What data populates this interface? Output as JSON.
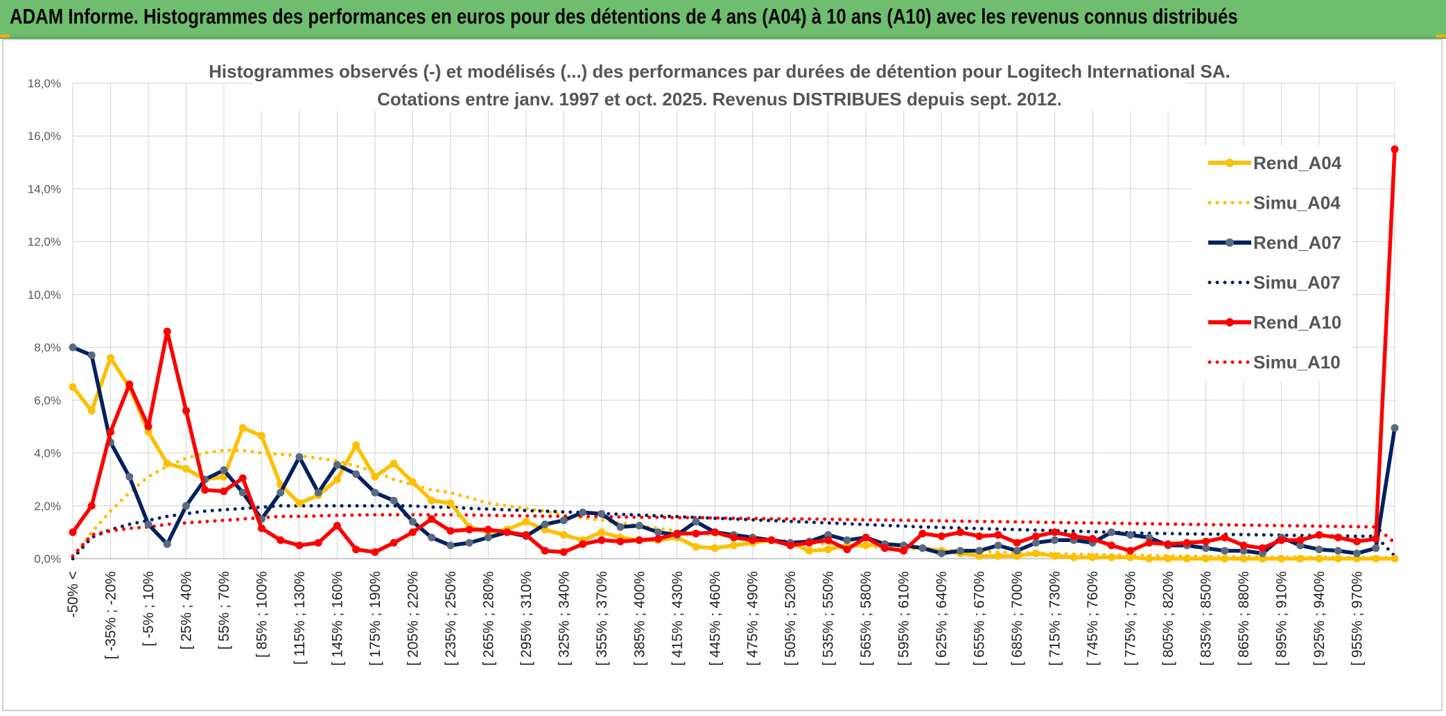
{
  "banner": {
    "title": "ADAM Informe. Histogrammes des performances en euros pour des détentions de 4 ans (A04) à 10 ans (A10) avec les revenus connus distribués"
  },
  "colors": {
    "banner_bg": "#6fbe70",
    "A04": "#ffc000",
    "A07": "#002060",
    "A07_marker": "#5a6a80",
    "A10": "#ff0000",
    "grid": "#d9d9d9"
  },
  "chart_data": {
    "type": "line",
    "title_lines": [
      "Histogrammes observés (-) et modélisés (...) des performances par durées de détention pour Logitech International SA.",
      "Cotations entre janv. 1997 et oct. 2025. Revenus DISTRIBUES depuis sept. 2012."
    ],
    "xlabel": "",
    "ylabel": "",
    "ylim": [
      0,
      18
    ],
    "y_unit": "%",
    "y_ticks": [
      "0,0%",
      "2,0%",
      "4,0%",
      "6,0%",
      "8,0%",
      "10,0%",
      "12,0%",
      "14,0%",
      "16,0%",
      "18,0%"
    ],
    "grid": true,
    "legend_position": "right",
    "x_tick_labels": [
      "-50% <",
      "[ -35% ; -20%",
      "[ -5% ; 10%",
      "[ 25% ; 40%",
      "[ 55% ; 70%",
      "[ 85% ; 100%",
      "[ 115% ; 130%",
      "[ 145% ; 160%",
      "[ 175% ; 190%",
      "[ 205% ; 220%",
      "[ 235% ; 250%",
      "[ 265% ; 280%",
      "[ 295% ; 310%",
      "[ 325% ; 340%",
      "[ 355% ; 370%",
      "[ 385% ; 400%",
      "[ 415% ; 430%",
      "[ 445% ; 460%",
      "[ 475% ; 490%",
      "[ 505% ; 520%",
      "[ 535% ; 550%",
      "[ 565% ; 580%",
      "[ 595% ; 610%",
      "[ 625% ; 640%",
      "[ 655% ; 670%",
      "[ 685% ; 700%",
      "[ 715% ; 730%",
      "[ 745% ; 760%",
      "[ 775% ; 790%",
      "[ 805% ; 820%",
      "[ 835% ; 850%",
      "[ 865% ; 880%",
      "[ 895% ; 910%",
      "[ 925% ; 940%",
      "[ 955% ; 970%"
    ],
    "series": [
      {
        "name": "Rend_A04",
        "style": "solid",
        "color": "#ffc000",
        "values": [
          6.5,
          5.6,
          7.6,
          6.5,
          4.8,
          3.6,
          3.4,
          3.0,
          3.1,
          4.95,
          4.65,
          2.8,
          2.1,
          2.4,
          3.0,
          4.3,
          3.1,
          3.6,
          2.9,
          2.2,
          2.1,
          1.2,
          1.0,
          1.1,
          1.4,
          1.1,
          0.9,
          0.7,
          1.0,
          0.8,
          0.7,
          0.7,
          0.8,
          0.45,
          0.4,
          0.5,
          0.6,
          0.7,
          0.6,
          0.3,
          0.35,
          0.5,
          0.5,
          0.55,
          0.5,
          0.4,
          0.3,
          0.2,
          0.1,
          0.1,
          0.1,
          0.2,
          0.1,
          0.05,
          0.05,
          0.05,
          0.05,
          0.0,
          0.0,
          0.0,
          0.0,
          0.0,
          0.0,
          0.0,
          0.0,
          0.0,
          0.0,
          0.0,
          0.0,
          0.0,
          0.0
        ]
      },
      {
        "name": "Simu_A04",
        "style": "dotted",
        "color": "#ffc000",
        "values": [
          0.0,
          1.0,
          1.8,
          2.5,
          3.1,
          3.5,
          3.8,
          4.0,
          4.1,
          4.1,
          4.0,
          3.95,
          3.9,
          3.8,
          3.7,
          3.5,
          3.3,
          3.0,
          2.8,
          2.6,
          2.5,
          2.3,
          2.1,
          2.0,
          1.9,
          1.8,
          1.65,
          1.55,
          1.45,
          1.35,
          1.25,
          1.15,
          1.05,
          0.98,
          0.9,
          0.85,
          0.78,
          0.72,
          0.66,
          0.6,
          0.56,
          0.5,
          0.47,
          0.42,
          0.39,
          0.36,
          0.33,
          0.3,
          0.27,
          0.25,
          0.23,
          0.21,
          0.19,
          0.17,
          0.16,
          0.14,
          0.13,
          0.12,
          0.11,
          0.1,
          0.09,
          0.08,
          0.07,
          0.07,
          0.06,
          0.06,
          0.05,
          0.05,
          0.04,
          0.04,
          0.04
        ]
      },
      {
        "name": "Rend_A07",
        "style": "solid",
        "color": "#002060",
        "values": [
          8.0,
          7.7,
          4.4,
          3.1,
          1.3,
          0.55,
          2.0,
          3.0,
          3.35,
          2.5,
          1.5,
          2.5,
          3.85,
          2.5,
          3.55,
          3.2,
          2.5,
          2.2,
          1.4,
          0.8,
          0.5,
          0.6,
          0.8,
          1.0,
          0.85,
          1.3,
          1.45,
          1.75,
          1.7,
          1.2,
          1.25,
          1.0,
          0.9,
          1.4,
          1.0,
          0.9,
          0.8,
          0.7,
          0.6,
          0.65,
          0.9,
          0.7,
          0.8,
          0.55,
          0.5,
          0.4,
          0.2,
          0.3,
          0.3,
          0.5,
          0.3,
          0.6,
          0.7,
          0.7,
          0.6,
          1.0,
          0.9,
          0.8,
          0.5,
          0.5,
          0.4,
          0.3,
          0.3,
          0.2,
          0.8,
          0.5,
          0.35,
          0.3,
          0.2,
          0.4,
          4.95
        ]
      },
      {
        "name": "Simu_A07",
        "style": "dotted",
        "color": "#002060",
        "values": [
          0.0,
          0.8,
          1.1,
          1.3,
          1.45,
          1.6,
          1.7,
          1.8,
          1.85,
          1.9,
          1.95,
          2.0,
          2.0,
          2.0,
          2.0,
          2.0,
          2.0,
          2.0,
          2.0,
          1.95,
          1.95,
          1.9,
          1.88,
          1.85,
          1.82,
          1.8,
          1.77,
          1.74,
          1.71,
          1.68,
          1.65,
          1.62,
          1.59,
          1.56,
          1.53,
          1.5,
          1.47,
          1.44,
          1.41,
          1.38,
          1.35,
          1.32,
          1.29,
          1.26,
          1.23,
          1.2,
          1.18,
          1.16,
          1.14,
          1.12,
          1.1,
          1.08,
          1.06,
          1.04,
          1.02,
          1.0,
          0.98,
          0.96,
          0.95,
          0.94,
          0.93,
          0.92,
          0.91,
          0.9,
          0.89,
          0.88,
          0.87,
          0.86,
          0.85,
          0.85,
          0.1
        ]
      },
      {
        "name": "Rend_A10",
        "style": "solid",
        "color": "#ff0000",
        "values": [
          1.0,
          2.0,
          4.8,
          6.6,
          5.0,
          8.6,
          5.6,
          2.6,
          2.55,
          3.05,
          1.15,
          0.7,
          0.5,
          0.6,
          1.25,
          0.35,
          0.25,
          0.6,
          1.0,
          1.5,
          1.05,
          1.1,
          1.1,
          1.0,
          0.9,
          0.3,
          0.25,
          0.55,
          0.7,
          0.65,
          0.7,
          0.75,
          0.95,
          0.95,
          1.0,
          0.8,
          0.7,
          0.7,
          0.5,
          0.6,
          0.7,
          0.35,
          0.8,
          0.4,
          0.3,
          0.95,
          0.85,
          1.0,
          0.85,
          0.9,
          0.6,
          0.85,
          1.0,
          0.85,
          0.75,
          0.5,
          0.3,
          0.6,
          0.55,
          0.6,
          0.65,
          0.8,
          0.5,
          0.4,
          0.7,
          0.7,
          0.9,
          0.8,
          0.65,
          0.75,
          15.5
        ]
      },
      {
        "name": "Simu_A10",
        "style": "dotted",
        "color": "#ff0000",
        "values": [
          0.1,
          0.9,
          1.05,
          1.15,
          1.2,
          1.3,
          1.35,
          1.4,
          1.45,
          1.5,
          1.55,
          1.6,
          1.6,
          1.62,
          1.64,
          1.65,
          1.66,
          1.66,
          1.66,
          1.66,
          1.66,
          1.65,
          1.64,
          1.63,
          1.62,
          1.61,
          1.6,
          1.6,
          1.59,
          1.58,
          1.57,
          1.56,
          1.55,
          1.55,
          1.54,
          1.53,
          1.52,
          1.51,
          1.5,
          1.5,
          1.49,
          1.48,
          1.47,
          1.46,
          1.45,
          1.44,
          1.43,
          1.42,
          1.41,
          1.4,
          1.39,
          1.38,
          1.37,
          1.36,
          1.35,
          1.34,
          1.33,
          1.32,
          1.31,
          1.3,
          1.29,
          1.28,
          1.27,
          1.26,
          1.25,
          1.24,
          1.23,
          1.22,
          1.21,
          1.2,
          0.6
        ]
      }
    ]
  }
}
